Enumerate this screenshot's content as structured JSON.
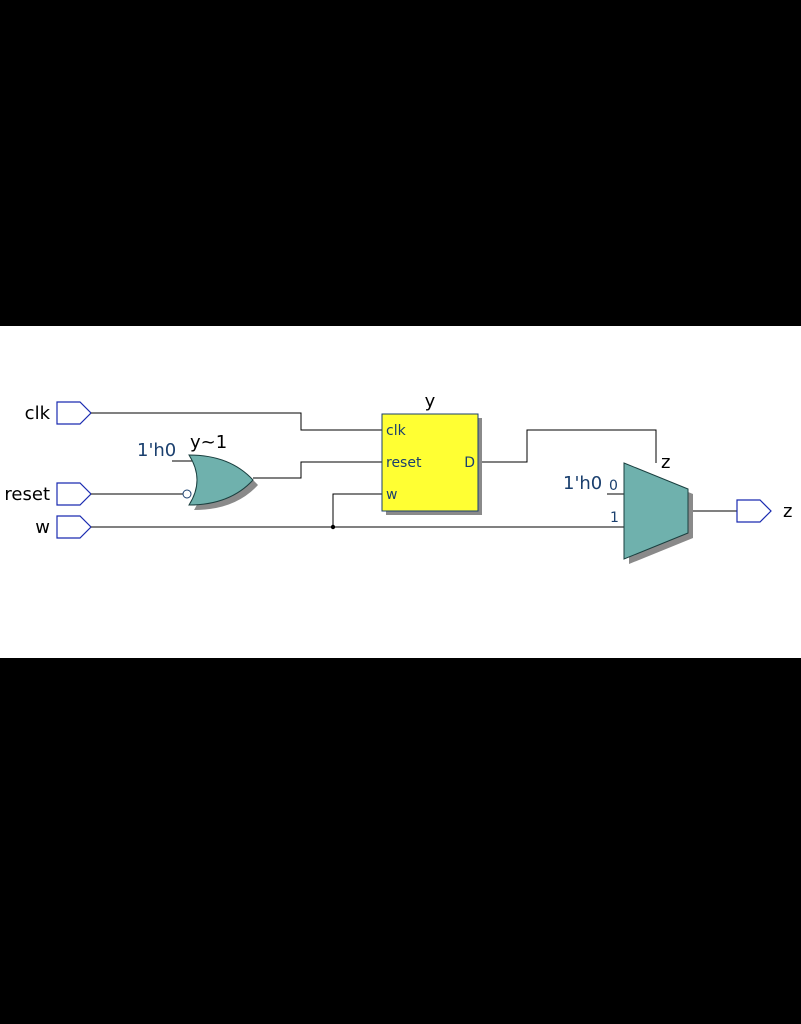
{
  "inputs": {
    "clk": "clk",
    "reset": "reset",
    "w": "w"
  },
  "output": {
    "z": "z"
  },
  "or_gate": {
    "name": "y~1",
    "const": "1'h0"
  },
  "register": {
    "name": "y",
    "pin_clk": "clk",
    "pin_reset": "reset",
    "pin_w": "w",
    "pin_d": "D"
  },
  "mux": {
    "name": "z",
    "const": "1'h0",
    "in0": "0",
    "in1": "1"
  },
  "colors": {
    "register_fill": "#ffff33",
    "gate_fill": "#6fb1ad",
    "shadow": "#8a8a8a",
    "label_blue": "#1a3f6e",
    "port_stroke": "#1a2bb0"
  }
}
